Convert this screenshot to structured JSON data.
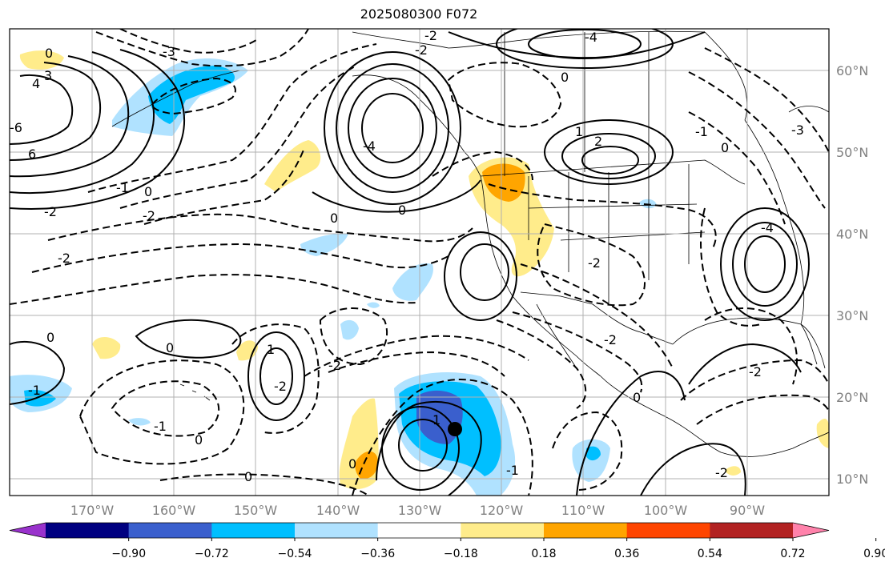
{
  "title": "2025080300 F072",
  "map": {
    "lon_range": [
      -180,
      -80
    ],
    "lat_range": [
      8,
      65
    ],
    "grid": true,
    "lon_labels": [
      "170°W",
      "160°W",
      "150°W",
      "140°W",
      "130°W",
      "120°W",
      "110°W",
      "100°W",
      "90°W"
    ],
    "lat_labels": [
      "60°N",
      "50°N",
      "40°N",
      "30°N",
      "20°N",
      "10°N"
    ],
    "marker": {
      "name": "storm-center-dot",
      "lon": -126,
      "lat": 16
    }
  },
  "colorbar": {
    "ticks": [
      "−0.90",
      "−0.72",
      "−0.54",
      "−0.36",
      "−0.18",
      "0.18",
      "0.36",
      "0.54",
      "0.72",
      "0.90"
    ],
    "colors": [
      "#9932cc",
      "#000080",
      "#3a5fcd",
      "#00bfff",
      "#b0e2ff",
      "#ffffff",
      "#ffec8b",
      "#ffa500",
      "#ff4500",
      "#b22222",
      "#ff82ab"
    ],
    "extend": "both"
  },
  "contour_labels": [
    "0",
    "0",
    "0",
    "0",
    "0",
    "0",
    "0",
    "0",
    "0",
    "0",
    "0",
    "0",
    "-1",
    "-1",
    "-1",
    "-1",
    "-1",
    "1",
    "1",
    "1",
    "2",
    "-2",
    "-2",
    "-2",
    "-2",
    "-2",
    "-2",
    "-2",
    "-2",
    "-2",
    "-2",
    "-2",
    "3",
    "-3",
    "-3",
    "4",
    "-4",
    "-4",
    "-4",
    "6",
    "-6"
  ]
}
